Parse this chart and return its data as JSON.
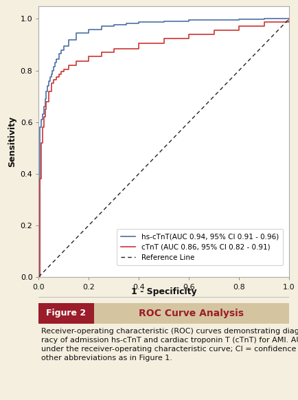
{
  "xlabel": "1 - Specificity",
  "ylabel": "Sensitivity",
  "xlim": [
    0.0,
    1.0
  ],
  "ylim": [
    0.0,
    1.05
  ],
  "xticks": [
    0.0,
    0.2,
    0.4,
    0.6,
    0.8,
    1.0
  ],
  "yticks": [
    0.0,
    0.2,
    0.4,
    0.6,
    0.8,
    1.0
  ],
  "blue_color": "#4a6fa5",
  "red_color": "#cc3333",
  "ref_color": "#222222",
  "bg_color": "#ffffff",
  "plot_border_color": "#aaaaaa",
  "outer_bg": "#f5efe0",
  "figure_label_bg": "#9b1c2a",
  "figure_label_text": "#ffffff",
  "figure_title_text": "#9b1c2a",
  "figure_label": "Figure 2",
  "figure_title": "ROC Curve Analysis",
  "caption_text": "Receiver-operating characteristic (ROC) curves demonstrating diagnostic accu-\nracy of admission hs-cTnT and cardiac troponin T (cTnT) for AMI. AUC = area\nunder the receiver-operating characteristic curve; CI = confidence interval;\nother abbreviations as in Figure 1.",
  "legend_blue": "hs-cTnT(AUC 0.94, 95% CI 0.91 - 0.96)",
  "legend_red": "cTnT (AUC 0.86, 95% CI 0.82 - 0.91)",
  "legend_ref": "Reference Line",
  "fontsize_axis_label": 9,
  "fontsize_tick": 8,
  "fontsize_legend": 7.5,
  "fontsize_caption": 8,
  "fontsize_figure_label": 9,
  "fontsize_figure_title": 10,
  "hs_fpr": [
    0.0,
    0.005,
    0.01,
    0.015,
    0.02,
    0.025,
    0.03,
    0.035,
    0.04,
    0.045,
    0.05,
    0.055,
    0.06,
    0.065,
    0.07,
    0.08,
    0.09,
    0.1,
    0.12,
    0.15,
    0.2,
    0.25,
    0.3,
    0.35,
    0.4,
    0.5,
    0.6,
    0.7,
    0.8,
    0.9,
    1.0
  ],
  "hs_tpr": [
    0.0,
    0.58,
    0.61,
    0.63,
    0.66,
    0.69,
    0.72,
    0.74,
    0.76,
    0.775,
    0.785,
    0.8,
    0.815,
    0.83,
    0.845,
    0.865,
    0.88,
    0.895,
    0.92,
    0.945,
    0.96,
    0.972,
    0.978,
    0.983,
    0.988,
    0.992,
    0.995,
    0.997,
    0.999,
    1.0,
    1.0
  ],
  "ctnt_fpr": [
    0.0,
    0.005,
    0.01,
    0.015,
    0.02,
    0.025,
    0.03,
    0.04,
    0.05,
    0.06,
    0.07,
    0.08,
    0.09,
    0.1,
    0.12,
    0.15,
    0.2,
    0.25,
    0.3,
    0.4,
    0.5,
    0.6,
    0.7,
    0.8,
    0.9,
    1.0
  ],
  "ctnt_tpr": [
    0.0,
    0.38,
    0.52,
    0.58,
    0.62,
    0.65,
    0.68,
    0.72,
    0.75,
    0.765,
    0.775,
    0.785,
    0.795,
    0.805,
    0.82,
    0.835,
    0.855,
    0.87,
    0.883,
    0.905,
    0.923,
    0.94,
    0.957,
    0.972,
    0.987,
    1.0
  ]
}
